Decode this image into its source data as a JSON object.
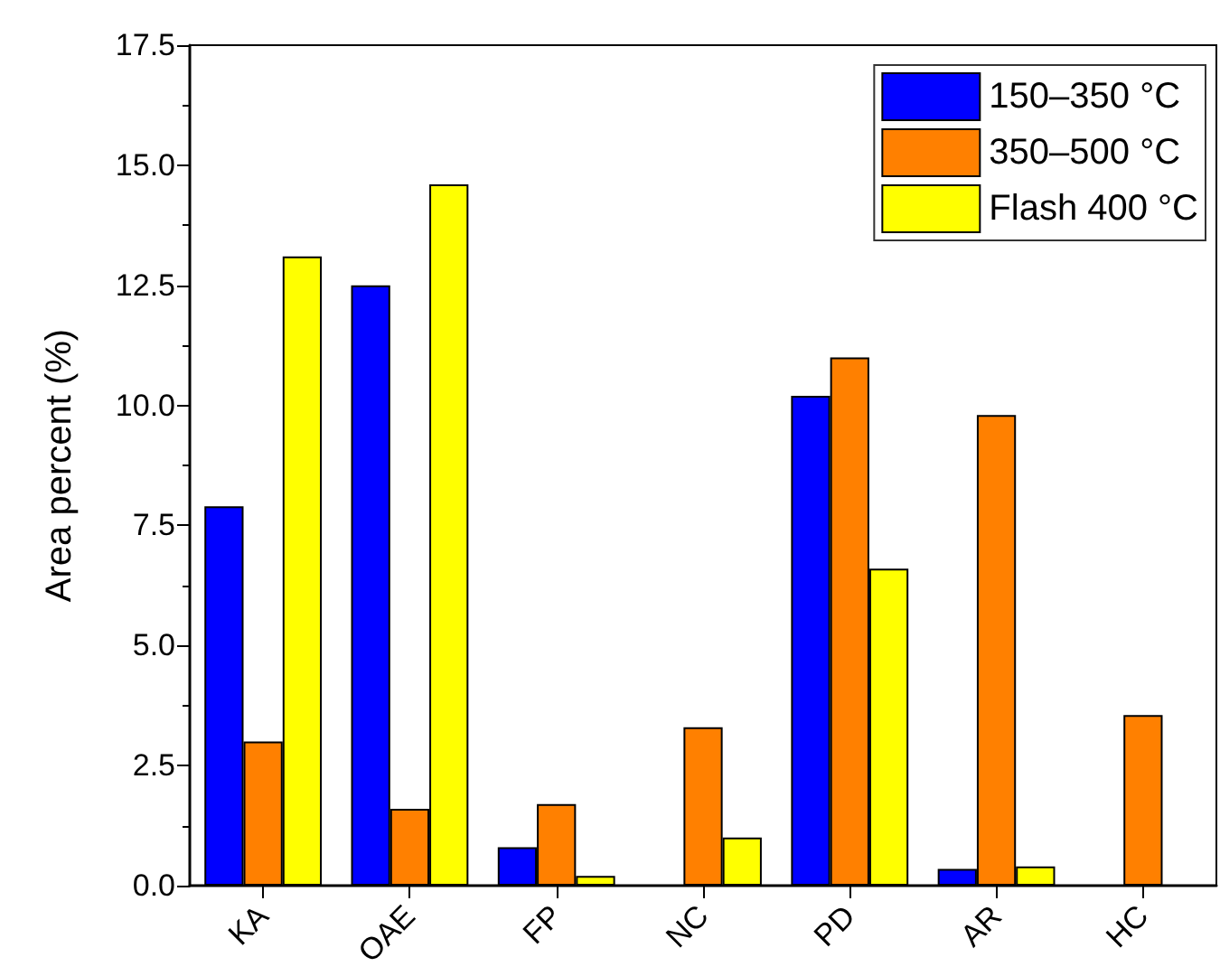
{
  "chart_data": {
    "type": "bar",
    "ylabel": "Area percent (%)",
    "categories": [
      "KA",
      "OAE",
      "FP",
      "NC",
      "PD",
      "AR",
      "HC"
    ],
    "series": [
      {
        "name": "150–350 °C",
        "color": "#0000ff",
        "values": [
          7.9,
          12.5,
          0.8,
          null,
          10.2,
          0.35,
          null
        ]
      },
      {
        "name": "350–500 °C",
        "color": "#ff8000",
        "values": [
          3.0,
          1.6,
          1.7,
          3.3,
          11.0,
          9.8,
          3.55
        ]
      },
      {
        "name": "Flash 400 °C",
        "color": "#ffff00",
        "values": [
          13.1,
          14.6,
          0.2,
          1.0,
          6.6,
          0.4,
          null
        ]
      }
    ],
    "ylim": [
      0,
      17.5
    ],
    "yticks": [
      {
        "value": 0,
        "label": "0.0"
      },
      2.5,
      {
        "value": 5,
        "label": "5.0"
      },
      7.5,
      {
        "value": 10,
        "label": "10.0"
      },
      12.5,
      {
        "value": 15,
        "label": "15.0"
      },
      17.5
    ],
    "grid": false,
    "legend": "top right"
  }
}
